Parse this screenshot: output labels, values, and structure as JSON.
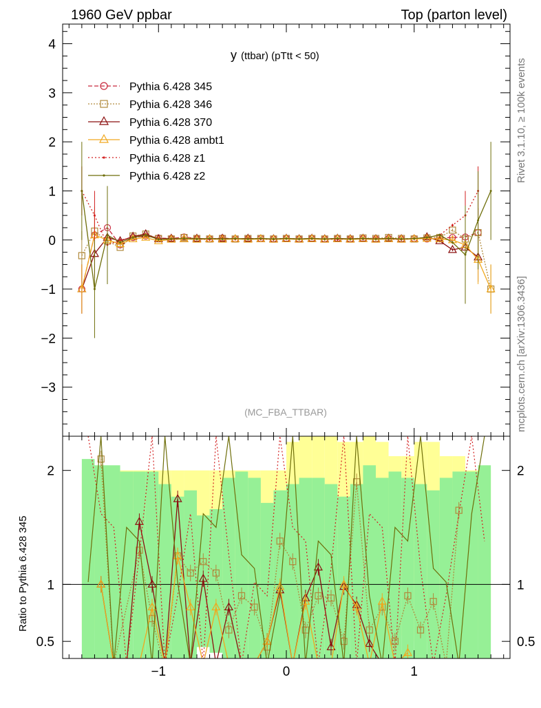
{
  "header": {
    "left": "1960 GeV ppbar",
    "right": "Top (parton level)"
  },
  "side_labels": {
    "rivet": "Rivet 3.1.10, ≥ 100k events",
    "mcplots": "mcplots.cern.ch [arXiv:1306.3436]"
  },
  "chart_data": [
    {
      "type": "line",
      "title_main": "y",
      "title_rest": "(ttbar)  (pTtt < 50)",
      "analysis_label": "(MC_FBA_TTBAR)",
      "xlim": [
        -1.75,
        1.75
      ],
      "ylim": [
        -4.0,
        4.4
      ],
      "yticks": [
        -3,
        -2,
        -1,
        0,
        1,
        2,
        3,
        4
      ],
      "ytick_labels": [
        "−3",
        "−2",
        "−1",
        "0",
        "1",
        "2",
        "3",
        "4"
      ],
      "grid": false,
      "legend_position": "top-left",
      "x": [
        -1.6,
        -1.5,
        -1.4,
        -1.3,
        -1.2,
        -1.1,
        -1.0,
        -0.9,
        -0.8,
        -0.7,
        -0.6,
        -0.5,
        -0.4,
        -0.3,
        -0.2,
        -0.1,
        0.0,
        0.1,
        0.2,
        0.3,
        0.4,
        0.5,
        0.6,
        0.7,
        0.8,
        0.9,
        1.0,
        1.1,
        1.2,
        1.3,
        1.4,
        1.5,
        1.6
      ],
      "series": [
        {
          "name": "Pythia 6.428 345",
          "color": "#c8283c",
          "marker": "circle",
          "dash": "6,3",
          "values": [
            -1.0,
            0.1,
            0.25,
            -0.1,
            0.05,
            0.08,
            0.04,
            0.03,
            0.06,
            0.03,
            0.02,
            0.04,
            0.02,
            0.03,
            0.03,
            0.02,
            0.03,
            0.02,
            0.03,
            0.02,
            0.03,
            0.02,
            0.03,
            0.02,
            0.03,
            0.02,
            0.03,
            0.02,
            0.04,
            0.05,
            0.06,
            0.15,
            null
          ]
        },
        {
          "name": "Pythia 6.428 346",
          "color": "#b08a3c",
          "marker": "square",
          "dash": "2,2",
          "values": [
            -0.32,
            0.18,
            -0.02,
            -0.15,
            0.08,
            0.12,
            0.03,
            0.02,
            0.05,
            0.03,
            0.02,
            0.03,
            0.02,
            0.03,
            0.03,
            0.02,
            0.03,
            0.02,
            0.03,
            0.02,
            0.03,
            0.02,
            0.04,
            0.03,
            0.05,
            0.03,
            0.02,
            0.04,
            0.05,
            0.2,
            0.02,
            0.15,
            -1.0
          ]
        },
        {
          "name": "Pythia 6.428 370",
          "color": "#8b0f0f",
          "marker": "triangle",
          "dash": "",
          "values": [
            -1.0,
            -0.28,
            0.05,
            -0.02,
            0.07,
            0.12,
            0.02,
            0.03,
            0.02,
            0.03,
            0.02,
            0.03,
            0.02,
            0.03,
            0.02,
            0.02,
            0.03,
            0.02,
            0.03,
            0.02,
            0.03,
            0.02,
            0.03,
            0.02,
            0.03,
            0.02,
            0.02,
            0.06,
            -0.02,
            -0.2,
            -0.15,
            -0.35,
            null
          ]
        },
        {
          "name": "Pythia 6.428 ambt1",
          "color": "#f0a81e",
          "marker": "triangle",
          "dash": "",
          "values": [
            -1.0,
            0.1,
            0.0,
            -0.08,
            0.02,
            0.05,
            -0.02,
            0.01,
            0.02,
            0.01,
            0.02,
            0.01,
            0.02,
            0.01,
            0.02,
            0.01,
            0.02,
            0.01,
            0.02,
            0.01,
            0.02,
            0.01,
            0.02,
            0.01,
            0.02,
            0.01,
            0.02,
            0.03,
            0.02,
            0.0,
            -0.1,
            -0.4,
            -1.0
          ]
        },
        {
          "name": "Pythia 6.428 z1",
          "color": "#d21e1e",
          "marker": "dot",
          "dash": "2,3",
          "values": [
            1.0,
            0.5,
            -0.1,
            0.0,
            0.05,
            0.1,
            0.02,
            0.01,
            0.03,
            0.02,
            0.01,
            0.03,
            0.02,
            0.03,
            0.02,
            0.01,
            0.03,
            0.02,
            0.03,
            0.02,
            0.01,
            0.03,
            0.02,
            0.03,
            0.02,
            0.01,
            0.03,
            0.05,
            0.1,
            0.3,
            0.5,
            1.0,
            null
          ]
        },
        {
          "name": "Pythia 6.428 z2",
          "color": "#6e6e0a",
          "marker": "dot",
          "dash": "",
          "values": [
            1.0,
            -1.0,
            0.1,
            -0.05,
            0.05,
            0.1,
            0.01,
            0.02,
            0.03,
            0.02,
            0.03,
            0.02,
            0.03,
            0.02,
            0.03,
            0.02,
            0.03,
            0.02,
            0.03,
            0.02,
            0.03,
            0.02,
            0.03,
            0.02,
            0.03,
            0.02,
            0.03,
            0.05,
            0.1,
            -0.05,
            -0.3,
            0.4,
            1.0
          ]
        }
      ]
    },
    {
      "type": "line",
      "ylabel": "Ratio to Pythia 6.428 345",
      "xlim": [
        -1.75,
        1.75
      ],
      "ylim": [
        0.35,
        2.3
      ],
      "yticks": [
        0.5,
        1,
        2
      ],
      "ytick_labels": [
        "0.5",
        "1",
        "2"
      ],
      "xticks": [
        -1,
        0,
        1
      ],
      "xtick_labels": [
        "−1",
        "0",
        "1"
      ],
      "reference_line": 1,
      "bands": {
        "yellow": [
          0.4,
          0.4,
          0.4,
          0.4,
          0.4,
          0.4,
          0.4,
          0.4,
          0.4,
          0.4,
          0.4,
          0.4,
          0.4,
          0.4,
          0.4,
          0.4,
          0.5,
          0.55,
          0.55,
          0.55,
          0.5,
          0.5,
          0.65,
          0.5,
          0.45,
          0.45,
          0.5,
          0.5,
          0.45,
          0.45,
          0.4,
          0.4
        ],
        "green": [
          1.0,
          0.95,
          0.95,
          0.9,
          0.9,
          0.9,
          0.8,
          0.7,
          0.75,
          0.55,
          0.6,
          0.85,
          0.9,
          0.85,
          0.65,
          0.75,
          0.8,
          0.85,
          0.85,
          0.8,
          0.7,
          0.8,
          0.95,
          0.85,
          0.9,
          0.85,
          0.8,
          0.75,
          0.85,
          0.9,
          0.9,
          0.95
        ]
      },
      "series": [
        {
          "name": "Pythia 6.428 346",
          "values": [
            null,
            2.1,
            0.3,
            null,
            1.3,
            0.7,
            0.25,
            1.25,
            1.1,
            1.2,
            1.1,
            0.6,
            0.9,
            0.8,
            0.45,
            1.38,
            1.2,
            0.6,
            0.9,
            0.88,
            0.5,
            1.9,
            0.6,
            0.8,
            0.5,
            0.9,
            0.6,
            0.85,
            0.3,
            1.65,
            null,
            null
          ]
        },
        {
          "name": "Pythia 6.428 370",
          "values": [
            null,
            1.0,
            0.3,
            0.3,
            1.55,
            1.0,
            0.3,
            1.75,
            0.3,
            1.05,
            0.3,
            0.8,
            0.3,
            0.3,
            0.5,
            0.95,
            0.3,
            0.88,
            1.15,
            0.45,
            0.98,
            0.82,
            0.48,
            0.3,
            0.3,
            0.3,
            null,
            null,
            null,
            null,
            null,
            null
          ]
        },
        {
          "name": "Pythia 6.428 ambt1",
          "values": [
            null,
            1.0,
            0.3,
            0.3,
            0.3,
            0.8,
            0.3,
            1.25,
            0.8,
            0.3,
            0.8,
            0.3,
            0.3,
            0.3,
            0.5,
            0.98,
            0.3,
            0.85,
            0.3,
            0.3,
            1.0,
            0.8,
            0.3,
            0.85,
            0.3,
            0.4,
            null,
            null,
            null,
            null,
            null,
            null
          ]
        }
      ]
    }
  ],
  "legend_markers": {
    "Pythia 6.428 345": "circle",
    "Pythia 6.428 346": "square",
    "Pythia 6.428 370": "triangle",
    "Pythia 6.428 ambt1": "triangle",
    "Pythia 6.428 z1": "dot",
    "Pythia 6.428 z2": "dot"
  }
}
